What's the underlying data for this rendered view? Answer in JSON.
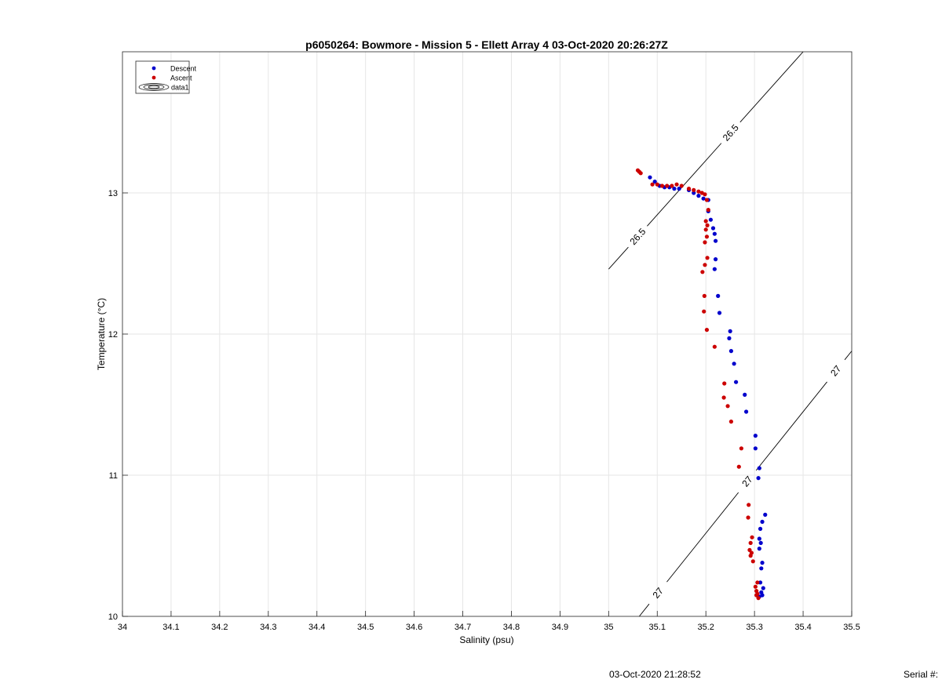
{
  "chart_data": {
    "type": "scatter",
    "title": "p6050264: Bowmore - Mission 5 - Ellett Array 4 03-Oct-2020 20:26:27Z",
    "xlabel": "Salinity (psu)",
    "ylabel": "Temperature (°C)",
    "xlim": [
      34,
      35.5
    ],
    "ylim": [
      10,
      14
    ],
    "x_ticks": [
      "34",
      "34.1",
      "34.2",
      "34.3",
      "34.4",
      "34.5",
      "34.6",
      "34.7",
      "34.8",
      "34.9",
      "35",
      "35.1",
      "35.2",
      "35.3",
      "35.4",
      "35.5"
    ],
    "y_ticks": [
      "10",
      "11",
      "12",
      "13"
    ],
    "grid": true,
    "legend_position": "top-left",
    "legend": [
      "Descent",
      "Ascent",
      "data1"
    ],
    "series": [
      {
        "name": "Descent",
        "color": "#0000cc",
        "points": [
          [
            35.085,
            13.11
          ],
          [
            35.095,
            13.08
          ],
          [
            35.105,
            13.05
          ],
          [
            35.115,
            13.04
          ],
          [
            35.125,
            13.04
          ],
          [
            35.135,
            13.03
          ],
          [
            35.145,
            13.03
          ],
          [
            35.165,
            13.02
          ],
          [
            35.175,
            13.0
          ],
          [
            35.185,
            12.98
          ],
          [
            35.195,
            12.96
          ],
          [
            35.205,
            12.95
          ],
          [
            35.205,
            12.87
          ],
          [
            35.21,
            12.81
          ],
          [
            35.215,
            12.75
          ],
          [
            35.218,
            12.71
          ],
          [
            35.22,
            12.66
          ],
          [
            35.22,
            12.53
          ],
          [
            35.218,
            12.46
          ],
          [
            35.225,
            12.27
          ],
          [
            35.228,
            12.15
          ],
          [
            35.25,
            12.02
          ],
          [
            35.248,
            11.97
          ],
          [
            35.252,
            11.88
          ],
          [
            35.258,
            11.79
          ],
          [
            35.262,
            11.66
          ],
          [
            35.28,
            11.57
          ],
          [
            35.283,
            11.45
          ],
          [
            35.302,
            11.28
          ],
          [
            35.302,
            11.19
          ],
          [
            35.31,
            11.05
          ],
          [
            35.308,
            10.98
          ],
          [
            35.322,
            10.72
          ],
          [
            35.316,
            10.67
          ],
          [
            35.312,
            10.62
          ],
          [
            35.31,
            10.55
          ],
          [
            35.313,
            10.52
          ],
          [
            35.31,
            10.48
          ],
          [
            35.316,
            10.38
          ],
          [
            35.314,
            10.34
          ],
          [
            35.312,
            10.24
          ],
          [
            35.318,
            10.2
          ],
          [
            35.314,
            10.17
          ],
          [
            35.316,
            10.15
          ],
          [
            35.31,
            10.14
          ]
        ]
      },
      {
        "name": "Ascent",
        "color": "#cc0000",
        "points": [
          [
            35.06,
            13.16
          ],
          [
            35.063,
            13.15
          ],
          [
            35.066,
            13.14
          ],
          [
            35.09,
            13.06
          ],
          [
            35.1,
            13.06
          ],
          [
            35.11,
            13.05
          ],
          [
            35.12,
            13.05
          ],
          [
            35.13,
            13.05
          ],
          [
            35.14,
            13.06
          ],
          [
            35.15,
            13.05
          ],
          [
            35.165,
            13.03
          ],
          [
            35.175,
            13.02
          ],
          [
            35.185,
            13.01
          ],
          [
            35.192,
            13.0
          ],
          [
            35.198,
            12.99
          ],
          [
            35.202,
            12.95
          ],
          [
            35.205,
            12.88
          ],
          [
            35.2,
            12.8
          ],
          [
            35.203,
            12.77
          ],
          [
            35.2,
            12.74
          ],
          [
            35.202,
            12.69
          ],
          [
            35.198,
            12.65
          ],
          [
            35.203,
            12.54
          ],
          [
            35.198,
            12.49
          ],
          [
            35.193,
            12.44
          ],
          [
            35.197,
            12.27
          ],
          [
            35.196,
            12.16
          ],
          [
            35.202,
            12.03
          ],
          [
            35.218,
            11.91
          ],
          [
            35.238,
            11.65
          ],
          [
            35.237,
            11.55
          ],
          [
            35.245,
            11.49
          ],
          [
            35.252,
            11.38
          ],
          [
            35.273,
            11.19
          ],
          [
            35.268,
            11.06
          ],
          [
            35.288,
            10.79
          ],
          [
            35.287,
            10.7
          ],
          [
            35.295,
            10.56
          ],
          [
            35.292,
            10.52
          ],
          [
            35.29,
            10.47
          ],
          [
            35.294,
            10.45
          ],
          [
            35.292,
            10.43
          ],
          [
            35.297,
            10.39
          ],
          [
            35.302,
            10.21
          ],
          [
            35.306,
            10.24
          ],
          [
            35.304,
            10.18
          ],
          [
            35.306,
            10.16
          ],
          [
            35.308,
            10.13
          ],
          [
            35.304,
            10.15
          ]
        ]
      }
    ],
    "contours": [
      {
        "label": "26.5",
        "points": [
          [
            35.0,
            12.46
          ],
          [
            35.4,
            14.0
          ]
        ],
        "label_positions": [
          [
            35.06,
            12.69
          ],
          [
            35.25,
            13.43
          ]
        ]
      },
      {
        "label": "27",
        "points": [
          [
            35.063,
            10.0
          ],
          [
            35.5,
            11.88
          ]
        ],
        "label_positions": [
          [
            35.1,
            10.17
          ],
          [
            35.28,
            10.97
          ],
          [
            35.46,
            11.76
          ]
        ]
      }
    ]
  },
  "footer": {
    "timestamp": "03-Oct-2020 21:28:52",
    "serial": "Serial #:"
  }
}
